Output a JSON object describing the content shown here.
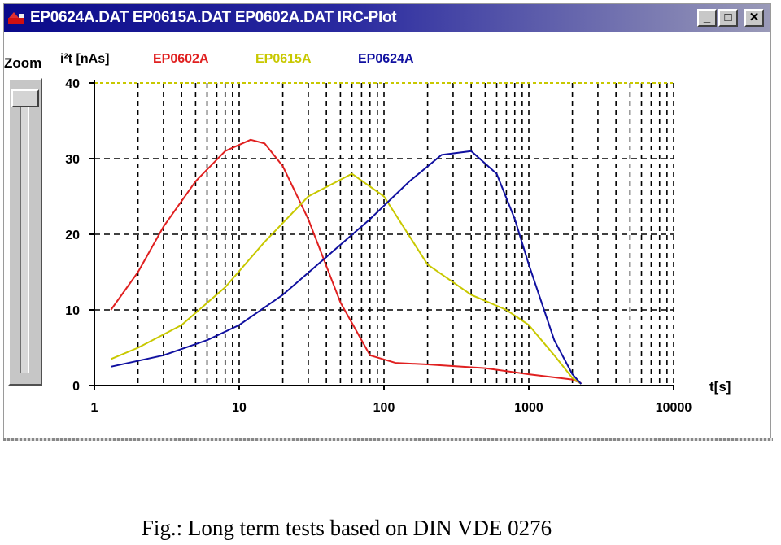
{
  "window": {
    "title": "EP0624A.DAT EP0615A.DAT EP0602A.DAT IRC-Plot",
    "buttons": {
      "minimize": "_",
      "maximize": "□",
      "close": "✕"
    }
  },
  "zoom": {
    "label": "Zoom"
  },
  "chart_data": {
    "type": "line",
    "ylabel": "i²t [nAs]",
    "xlabel": "t[s]",
    "x_scale": "log",
    "xlim": [
      1,
      10000
    ],
    "ylim": [
      0,
      40
    ],
    "x_ticks": [
      "1",
      "10",
      "100",
      "1000",
      "10000"
    ],
    "y_ticks": [
      "0",
      "10",
      "20",
      "30",
      "40"
    ],
    "grid": true,
    "legend_position": "top",
    "series": [
      {
        "name": "EP0602A",
        "color": "#e02020",
        "x": [
          1.3,
          2,
          3,
          5,
          8,
          12,
          15,
          20,
          30,
          50,
          80,
          120,
          200,
          500,
          1000,
          2000,
          2300
        ],
        "y": [
          10,
          15,
          21,
          27,
          31,
          32.5,
          32,
          29,
          22,
          11,
          4,
          3,
          2.8,
          2.3,
          1.5,
          0.8,
          0.3
        ]
      },
      {
        "name": "EP0615A",
        "color": "#c8c800",
        "x": [
          1.3,
          2,
          4,
          8,
          15,
          30,
          60,
          100,
          200,
          400,
          700,
          1000,
          1500,
          2000,
          2300
        ],
        "y": [
          3.5,
          5,
          8,
          13,
          19,
          25,
          28,
          25,
          16,
          12,
          10,
          8,
          4,
          1,
          0.2
        ]
      },
      {
        "name": "EP0624A",
        "color": "#1010a0",
        "x": [
          1.3,
          3,
          6,
          10,
          20,
          40,
          80,
          150,
          250,
          400,
          600,
          800,
          1000,
          1500,
          2000,
          2300
        ],
        "y": [
          2.5,
          4,
          6,
          8,
          12,
          17,
          22,
          27,
          30.5,
          31,
          28,
          22,
          16,
          6,
          1.5,
          0.2
        ]
      }
    ]
  },
  "caption": "Fig.: Long term tests based on DIN VDE 0276"
}
